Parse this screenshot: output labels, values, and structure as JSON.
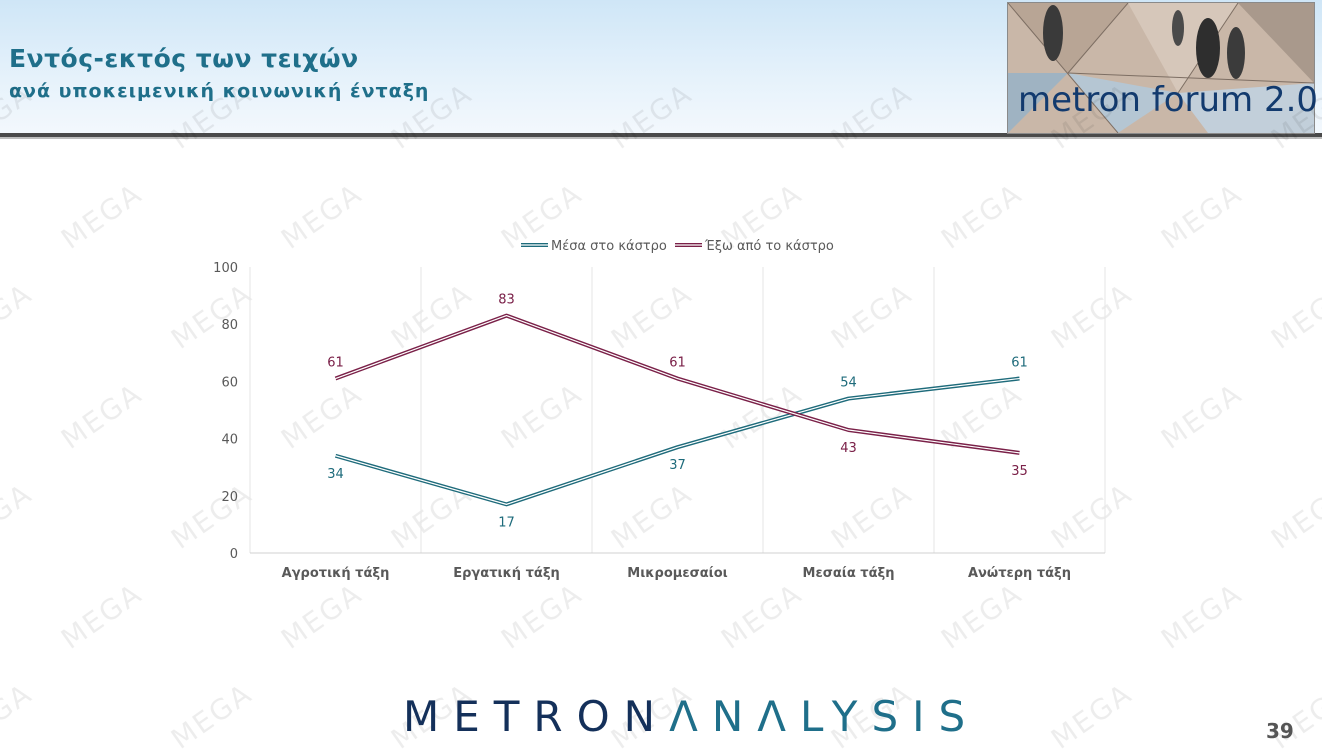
{
  "header": {
    "title": "Εντός-εκτός των τειχών",
    "subtitle": "ανά υποκειμενική κοινωνική ένταξη",
    "logo_text": "metron forum 2.0"
  },
  "watermark_text": "MEGA",
  "footer": {
    "brand_part1": "METRON",
    "brand_part2": "ΛNΛLYSIS",
    "page_number": "39"
  },
  "colors": {
    "title": "#1f6f8a",
    "series_inside": "#1e6b7b",
    "series_outside": "#7a2048"
  },
  "chart_data": {
    "type": "line",
    "categories": [
      "Αγροτική τάξη",
      "Εργατική τάξη",
      "Μικρομεσαίοι",
      "Μεσαία τάξη",
      "Ανώτερη τάξη"
    ],
    "series": [
      {
        "name": "Μέσα στο κάστρο",
        "values": [
          34,
          17,
          37,
          54,
          61
        ],
        "color": "#1e6b7b"
      },
      {
        "name": "Έξω από το κάστρο",
        "values": [
          61,
          83,
          61,
          43,
          35
        ],
        "color": "#7a2048"
      }
    ],
    "ylim": [
      0,
      100
    ],
    "yticks": [
      0,
      20,
      40,
      60,
      80,
      100
    ],
    "grid": "vertical",
    "legend": "top-center",
    "data_labels": true
  }
}
